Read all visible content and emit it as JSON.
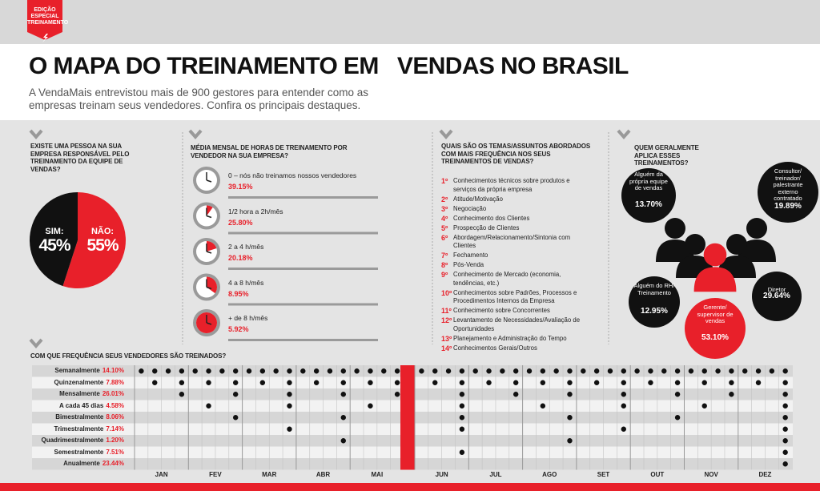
{
  "header": {
    "badge": [
      "EDIÇÃO",
      "ESPECIAL",
      "TREINAMENTO"
    ],
    "title": "O MAPA DO TREINAMENTO EM   VENDAS NO BRASIL",
    "subtitle": "A VendaMais entrevistou mais de 900 gestores para entender como as empresas treinam seus vendedores. Confira os principais destaques."
  },
  "responsavel": {
    "question": "EXISTE UMA PESSOA NA SUA EMPRESA RESPONSÁVEL PELO TREINAMENTO DA EQUIPE DE VENDAS?",
    "slices": [
      {
        "label": "SIM:",
        "value": 45,
        "value_label": "45%",
        "color": "#111111"
      },
      {
        "label": "NÃO:",
        "value": 55,
        "value_label": "55%",
        "color": "#e8202a"
      }
    ]
  },
  "horas": {
    "question": "MÉDIA MENSAL DE HORAS DE TREINAMENTO POR VENDEDOR NA SUA EMPRESA?",
    "items": [
      {
        "label": "0 – nós não treinamos nossos vendedores",
        "value": "39.15%"
      },
      {
        "label": "1/2 hora a 2h/mês",
        "value": "25.80%"
      },
      {
        "label": "2 a 4 h/mês",
        "value": "20.18%"
      },
      {
        "label": "4 a 8 h/mês",
        "value": "8.95%"
      },
      {
        "label": "+ de 8 h/mês",
        "value": "5.92%"
      }
    ]
  },
  "temas": {
    "question": "QUAIS SÃO OS TEMAS/ASSUNTOS ABORDADOS COM MAIS FREQUÊNCIA NOS SEUS TREINAMENTOS DE VENDAS?",
    "items": [
      {
        "rank": "1º",
        "text": "Conhecimentos técnicos sobre produtos e serviços da própria empresa"
      },
      {
        "rank": "2º",
        "text": "Atitude/Motivação"
      },
      {
        "rank": "3º",
        "text": "Negociação"
      },
      {
        "rank": "4º",
        "text": "Conhecimento dos Clientes"
      },
      {
        "rank": "5º",
        "text": "Prospecção de Clientes"
      },
      {
        "rank": "6º",
        "text": "Abordagem/Relacionamento/Sintonia com Clientes"
      },
      {
        "rank": "7º",
        "text": "Fechamento"
      },
      {
        "rank": "8º",
        "text": "Pós-Venda"
      },
      {
        "rank": "9º",
        "text": "Conhecimento de Mercado (economia, tendências, etc.)"
      },
      {
        "rank": "10º",
        "text": "Conhecimentos sobre Padrões, Processos e Procedimentos Internos da Empresa"
      },
      {
        "rank": "11º",
        "text": "Conhecimento sobre Concorrentes"
      },
      {
        "rank": "12º",
        "text": "Levantamento de Necessidades/Avaliação de Oportunidades"
      },
      {
        "rank": "13º",
        "text": "Planejamento e Administração do Tempo"
      },
      {
        "rank": "14º",
        "text": "Conhecimentos Gerais/Outros"
      }
    ]
  },
  "quem": {
    "question": "QUEM GERALMENTE APLICA ESSES TREINAMENTOS?",
    "bubbles": [
      {
        "label": "Alguém da própria equipe de vendas",
        "value": "13.70%"
      },
      {
        "label": "Consultor/ treinador/ palestrante externo contratado",
        "value": "19.89%"
      },
      {
        "label": "Alguém do RH/ Treinamento",
        "value": "12.95%"
      },
      {
        "label": "Diretor",
        "value": "29.64%"
      },
      {
        "label": "Gerente/ supervisor de vendas",
        "value": "53.10%"
      }
    ]
  },
  "frequencia": {
    "question": "COM QUE FREQUÊNCIA SEUS VENDEDORES SÃO TREINADOS?",
    "rows": [
      {
        "label": "Semanalmente",
        "value": "14.10%"
      },
      {
        "label": "Quinzenalmente",
        "value": "7.88%"
      },
      {
        "label": "Mensalmente",
        "value": "26.01%"
      },
      {
        "label": "A cada 45 dias",
        "value": "4.58%"
      },
      {
        "label": "Bimestralmente",
        "value": "8.06%"
      },
      {
        "label": "Trimestralmente",
        "value": "7.14%"
      },
      {
        "label": "Quadrimestralmente",
        "value": "1.20%"
      },
      {
        "label": "Semestralmente",
        "value": "7.51%"
      },
      {
        "label": "Anualmente",
        "value": "23.44%"
      }
    ],
    "months": [
      "JAN",
      "FEV",
      "MAR",
      "ABR",
      "MAI",
      "JUN",
      "JUL",
      "AGO",
      "SET",
      "OUT",
      "NOV",
      "DEZ"
    ]
  }
}
